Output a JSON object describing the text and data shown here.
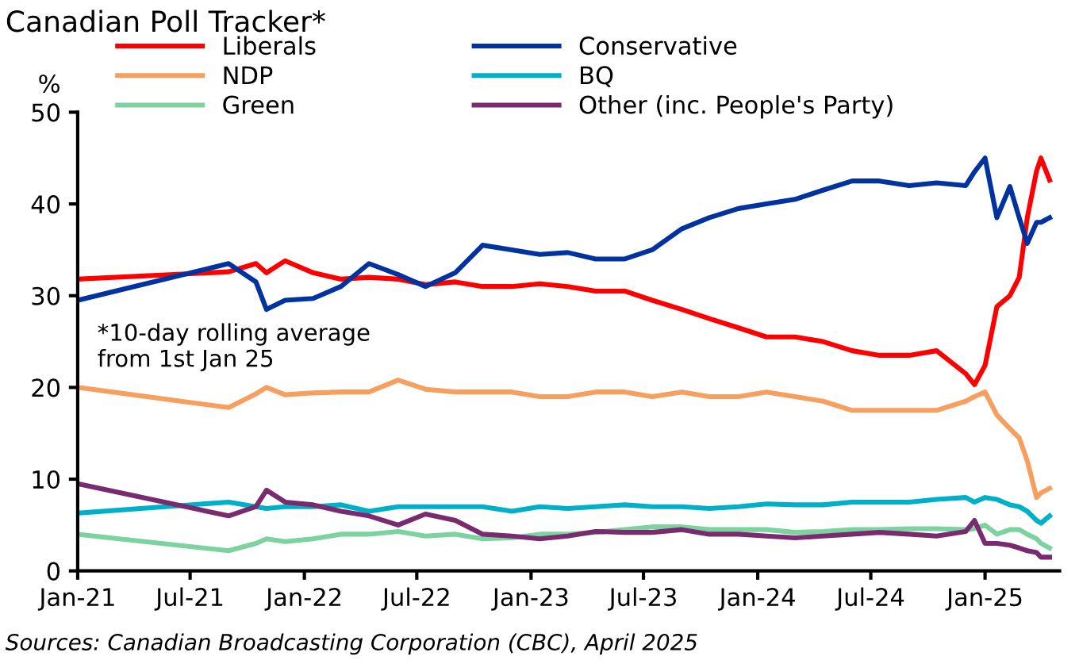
{
  "chart_data": {
    "type": "line",
    "title": "Canadian Poll Tracker*",
    "ylabel": "%",
    "x": [
      "2021-01-01",
      "2021-09-01",
      "2021-10-15",
      "2021-11-01",
      "2021-12-01",
      "2022-01-15",
      "2022-03-01",
      "2022-04-15",
      "2022-06-01",
      "2022-07-15",
      "2022-09-01",
      "2022-10-15",
      "2022-12-01",
      "2023-01-15",
      "2023-03-01",
      "2023-04-15",
      "2023-06-01",
      "2023-07-15",
      "2023-09-01",
      "2023-10-15",
      "2023-12-01",
      "2024-01-15",
      "2024-03-01",
      "2024-04-15",
      "2024-06-01",
      "2024-07-15",
      "2024-09-01",
      "2024-10-15",
      "2024-12-01",
      "2024-12-15",
      "2025-01-01",
      "2025-01-20",
      "2025-02-10",
      "2025-02-25",
      "2025-03-10",
      "2025-03-25",
      "2025-04-01",
      "2025-04-15"
    ],
    "series": [
      {
        "name": "Liberals",
        "color": "#ff0000",
        "values": [
          31.8,
          32.6,
          33.5,
          32.5,
          33.8,
          32.5,
          31.8,
          32,
          31.8,
          31.2,
          31.5,
          31,
          31,
          31.3,
          31,
          30.5,
          30.5,
          29.5,
          28.5,
          27.5,
          26.5,
          25.5,
          25.5,
          25,
          24,
          23.5,
          23.5,
          24,
          21.5,
          20.3,
          22.4,
          28.8,
          30,
          32,
          38.5,
          43.6,
          45,
          42.6
        ]
      },
      {
        "name": "Conservative",
        "color": "#0033a0",
        "values": [
          29.5,
          33.5,
          31.5,
          28.5,
          29.5,
          29.7,
          31,
          33.5,
          32.3,
          31,
          32.5,
          35.5,
          35,
          34.5,
          34.7,
          34,
          34,
          35,
          37.3,
          38.5,
          39.5,
          40,
          40.5,
          41.5,
          42.5,
          42.5,
          42,
          42.3,
          42,
          43.5,
          45,
          38.5,
          41.9,
          38.5,
          35.7,
          38,
          38,
          38.5
        ]
      },
      {
        "name": "NDP",
        "color": "#f79f5e",
        "values": [
          20,
          17.8,
          19.3,
          20,
          19.2,
          19.4,
          19.5,
          19.5,
          20.8,
          19.8,
          19.5,
          19.5,
          19.5,
          19,
          19,
          19.5,
          19.5,
          19,
          19.5,
          19,
          19,
          19.5,
          19,
          18.5,
          17.5,
          17.5,
          17.5,
          17.5,
          18.5,
          19,
          19.5,
          17,
          15.5,
          14.5,
          12,
          8,
          8.5,
          9
        ]
      },
      {
        "name": "BQ",
        "color": "#00b0c8",
        "values": [
          6.3,
          7.5,
          7,
          6.8,
          7,
          7,
          7.2,
          6.5,
          7,
          7,
          7,
          7,
          6.5,
          7,
          6.8,
          7,
          7.2,
          7,
          7,
          6.8,
          7,
          7.3,
          7.2,
          7.2,
          7.5,
          7.5,
          7.5,
          7.8,
          8,
          7.5,
          8,
          7.8,
          7.2,
          7,
          6.5,
          5.5,
          5.2,
          6
        ]
      },
      {
        "name": "Green",
        "color": "#7dd3a0",
        "values": [
          4,
          2.2,
          3,
          3.5,
          3.2,
          3.5,
          4,
          4,
          4.3,
          3.8,
          4,
          3.5,
          3.6,
          4,
          4,
          4.2,
          4.5,
          4.8,
          4.8,
          4.5,
          4.5,
          4.5,
          4.2,
          4.3,
          4.5,
          4.5,
          4.6,
          4.6,
          4.5,
          4.6,
          5,
          4,
          4.5,
          4.5,
          4,
          3.5,
          3,
          2.5
        ]
      },
      {
        "name": "Other (inc. People's Party)",
        "color": "#7a2a6e",
        "values": [
          9.5,
          6,
          7,
          8.8,
          7.5,
          7.2,
          6.5,
          6,
          5,
          6.2,
          5.5,
          4,
          3.8,
          3.5,
          3.8,
          4.3,
          4.2,
          4.2,
          4.5,
          4,
          4,
          3.8,
          3.6,
          3.8,
          4,
          4.2,
          4,
          3.8,
          4.3,
          5.5,
          3,
          3,
          2.8,
          2.5,
          2.2,
          2,
          1.5,
          1.5
        ]
      }
    ],
    "xlim": [
      "2021-01-01",
      "2025-05-01"
    ],
    "xticks": [
      {
        "value": "2021-01-01",
        "label": "Jan-21"
      },
      {
        "value": "2021-07-01",
        "label": "Jul-21"
      },
      {
        "value": "2022-01-01",
        "label": "Jan-22"
      },
      {
        "value": "2022-07-01",
        "label": "Jul-22"
      },
      {
        "value": "2023-01-01",
        "label": "Jan-23"
      },
      {
        "value": "2023-07-01",
        "label": "Jul-23"
      },
      {
        "value": "2024-01-01",
        "label": "Jan-24"
      },
      {
        "value": "2024-07-01",
        "label": "Jul-24"
      },
      {
        "value": "2025-01-01",
        "label": "Jan-25"
      }
    ],
    "ylim": [
      0,
      50
    ],
    "yticks": [
      0,
      10,
      20,
      30,
      40,
      50
    ],
    "grid": false,
    "legend": "top",
    "line_style": "solid",
    "marker": "none",
    "annotations": [
      "*10-day rolling average\nfrom 1st Jan 25",
      "Sources: Canadian Broadcasting Corporation (CBC), April 2025"
    ]
  }
}
